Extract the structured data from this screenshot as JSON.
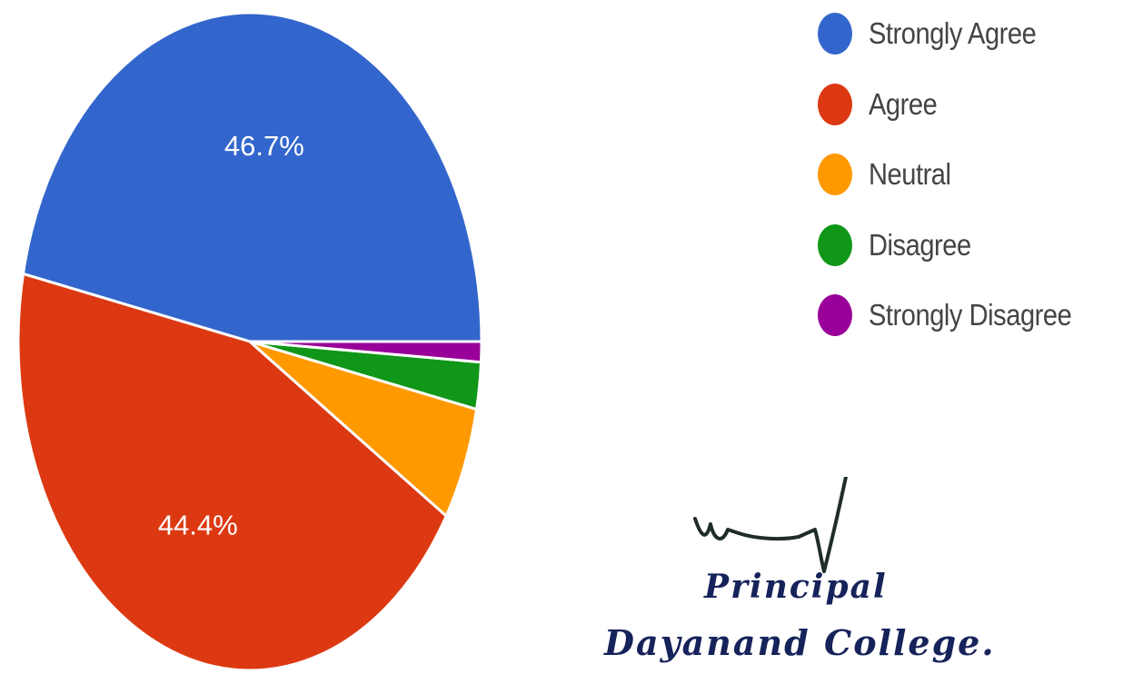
{
  "chart_data": {
    "type": "pie",
    "title": "",
    "labels": [
      "Strongly Agree",
      "Agree",
      "Neutral",
      "Disagree",
      "Strongly Disagree"
    ],
    "values": [
      46.7,
      44.4,
      5.6,
      2.3,
      1.0
    ],
    "data_labels": [
      "46.7%",
      "44.4%",
      "",
      "",
      ""
    ],
    "colors": [
      "#3366cc",
      "#dc3912",
      "#ff9900",
      "#109618",
      "#990099"
    ],
    "legend_position": "right"
  },
  "signature": {
    "title": "Principal",
    "organization": "Dayanand College."
  }
}
